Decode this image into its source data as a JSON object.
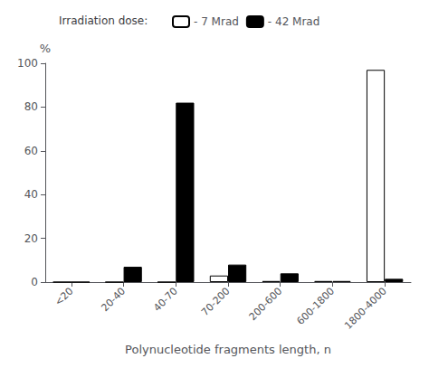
{
  "chart_data": {
    "type": "bar",
    "xlabel": "Polynucleotide fragments length, n",
    "ylabel": "%",
    "legend_title": "Irradiation dose:",
    "categories": [
      "<20",
      "20-40",
      "40-70",
      "70-200",
      "200-600",
      "600-1800",
      "1800-4000"
    ],
    "series": [
      {
        "name": "- 7 Mrad",
        "color": "#ffffff",
        "values": [
          0.0,
          0.0,
          0.0,
          3.0,
          0.5,
          0.5,
          97.0
        ]
      },
      {
        "name": "- 42 Mrad",
        "color": "#000000",
        "values": [
          0.0,
          7.0,
          82.0,
          8.0,
          4.0,
          0.5,
          1.5
        ]
      }
    ],
    "ylim": [
      0,
      100
    ],
    "yticks": [
      0,
      20,
      40,
      60,
      80,
      100
    ],
    "grid": false,
    "legend": "top"
  }
}
